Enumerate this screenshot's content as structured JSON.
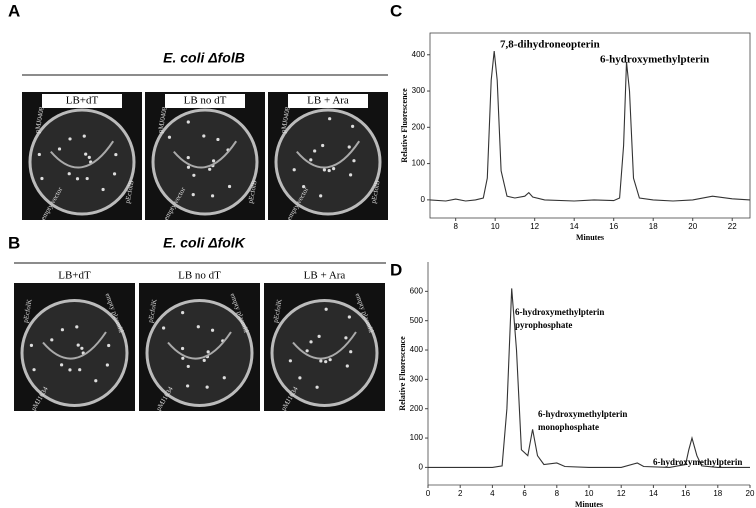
{
  "panel_labels": [
    "A",
    "B",
    "C",
    "D"
  ],
  "panels": {
    "A": {
      "title": "E. coli ΔfolB",
      "plates": [
        {
          "medium": "LB+dT",
          "labels": [
            "pMJ0408",
            "empty vector",
            "pEcfolB"
          ]
        },
        {
          "medium": "LB no dT",
          "labels": [
            "pMJ0408",
            "empty vector",
            "pEcfolB"
          ]
        },
        {
          "medium": "LB + Ara",
          "labels": [
            "pMJ0408",
            "empty vector",
            "pEcfolB"
          ]
        }
      ]
    },
    "B": {
      "title": "E. coli ΔfolK",
      "plates": [
        {
          "medium": "LB+dT",
          "labels": [
            "pEcfolK",
            "empty plasmid",
            "pMJ1634"
          ]
        },
        {
          "medium": "LB no dT",
          "labels": [
            "pEcfolK",
            "empty plasmid",
            "pMJ1634"
          ]
        },
        {
          "medium": "LB + Ara",
          "labels": [
            "pEcfolK",
            "empty plasmid",
            "pMJ1634"
          ]
        }
      ]
    }
  },
  "chart_data": [
    {
      "type": "line",
      "x_label": "Minutes",
      "y_label": "Relative Fluorescence",
      "color": "#333333",
      "frame": true,
      "x": [
        6.7,
        7.5,
        8,
        8.5,
        9,
        9.4,
        9.6,
        9.8,
        9.95,
        10.1,
        10.3,
        10.6,
        11,
        11.5,
        11.7,
        11.9,
        12.5,
        14,
        15,
        16,
        16.3,
        16.5,
        16.65,
        16.8,
        17,
        17.3,
        18,
        19,
        20,
        21,
        22,
        22.9
      ],
      "values": [
        0,
        -3,
        2,
        -3,
        0,
        5,
        60,
        330,
        410,
        330,
        80,
        10,
        5,
        10,
        20,
        8,
        0,
        -3,
        0,
        -2,
        5,
        150,
        380,
        300,
        60,
        5,
        0,
        -3,
        0,
        10,
        3,
        0
      ],
      "xlim": [
        6.7,
        22.9
      ],
      "xticks": [
        8,
        10,
        12,
        14,
        16,
        18,
        20,
        22
      ],
      "ylim": [
        -50,
        460
      ],
      "yticks": [
        0,
        100,
        200,
        300,
        400
      ],
      "annotations": [
        [
          "7,8-dihydroneopterin"
        ],
        [
          "6-hydroxymethylpterin"
        ]
      ]
    },
    {
      "type": "line",
      "x_label": "Minutes",
      "y_label": "Relative Fluorescence",
      "color": "#333333",
      "frame": false,
      "x": [
        0,
        4,
        4.6,
        4.9,
        5.2,
        5.5,
        5.8,
        6.2,
        6.5,
        6.8,
        7.2,
        8,
        8.5,
        10,
        12,
        13,
        13.4,
        15,
        16,
        16.2,
        16.4,
        16.7,
        17,
        18,
        20
      ],
      "values": [
        0,
        0,
        5,
        200,
        610,
        400,
        60,
        40,
        130,
        40,
        10,
        15,
        3,
        0,
        0,
        15,
        3,
        0,
        10,
        60,
        100,
        40,
        5,
        0,
        0
      ],
      "xlim": [
        0,
        20
      ],
      "xticks": [
        0,
        2,
        4,
        6,
        8,
        10,
        12,
        14,
        16,
        18,
        20
      ],
      "ylim": [
        -60,
        700
      ],
      "yticks": [
        0,
        100,
        200,
        300,
        400,
        500,
        600
      ],
      "annotations": [
        [
          "6-hydroxymethylpterin",
          "pyrophosphate"
        ],
        [
          "6-hydroxymethylpterin",
          "monophosphate"
        ],
        [
          "6-hydroxymethylpterin"
        ]
      ]
    }
  ]
}
